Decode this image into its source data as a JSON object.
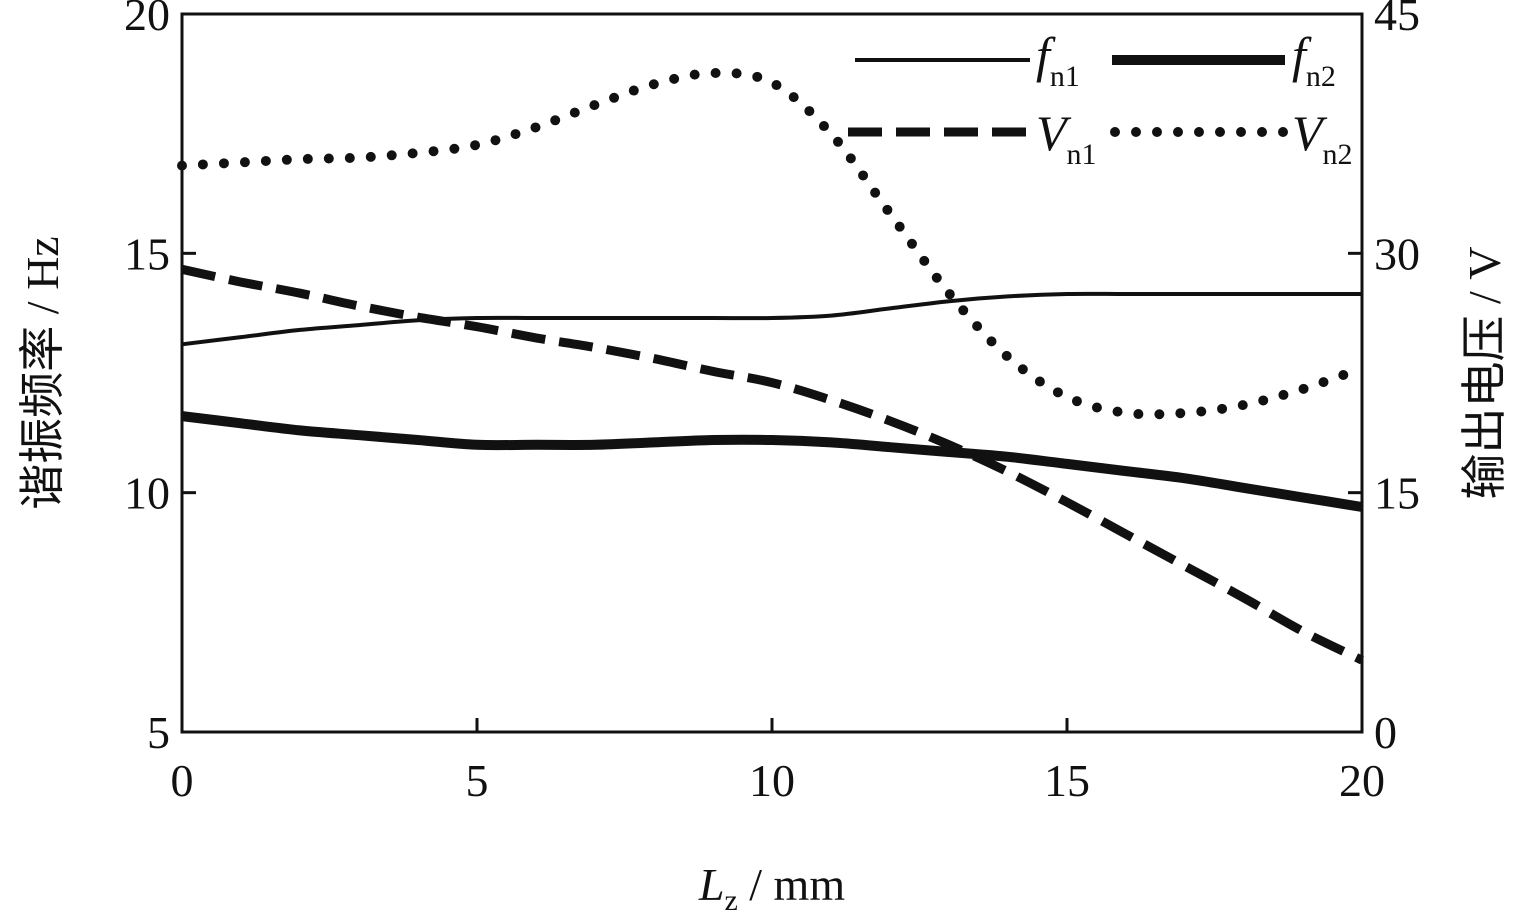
{
  "chart_data": {
    "type": "line",
    "x": [
      0,
      1,
      2,
      3,
      4,
      5,
      6,
      7,
      8,
      9,
      10,
      11,
      12,
      13,
      14,
      15,
      16,
      17,
      18,
      19,
      20
    ],
    "xlabel": {
      "symbol": "L",
      "sub": "z",
      "unit": " / mm"
    },
    "xlim": [
      0,
      20
    ],
    "xticks": [
      "0",
      "5",
      "10",
      "15",
      "20"
    ],
    "ylabel_left": "谐振频率 / Hz",
    "ylim_left": [
      5,
      20
    ],
    "yticks_left": [
      "5",
      "10",
      "15",
      "20"
    ],
    "ylabel_right": "输出电压 / V",
    "ylim_right": [
      0,
      45
    ],
    "yticks_right": [
      "0",
      "15",
      "30",
      "45"
    ],
    "grid": false,
    "legend_position": "top-right",
    "series": [
      {
        "name": "f",
        "sub": "n1",
        "axis": "left",
        "style": "solid-thin",
        "values": [
          13.1,
          13.25,
          13.4,
          13.5,
          13.6,
          13.65,
          13.65,
          13.65,
          13.65,
          13.65,
          13.65,
          13.7,
          13.85,
          14.0,
          14.1,
          14.15,
          14.15,
          14.15,
          14.15,
          14.15,
          14.15
        ]
      },
      {
        "name": "f",
        "sub": "n2",
        "axis": "left",
        "style": "solid-thick",
        "values": [
          11.6,
          11.45,
          11.3,
          11.2,
          11.1,
          11.0,
          11.0,
          11.0,
          11.05,
          11.1,
          11.1,
          11.05,
          10.95,
          10.85,
          10.75,
          10.6,
          10.45,
          10.3,
          10.1,
          9.9,
          9.7
        ]
      },
      {
        "name": "V",
        "sub": "n1",
        "axis": "right",
        "style": "dashed",
        "values": [
          29.0,
          28.2,
          27.5,
          26.7,
          26.0,
          25.4,
          24.7,
          24.1,
          23.4,
          22.6,
          21.9,
          20.8,
          19.5,
          18.0,
          16.3,
          14.4,
          12.4,
          10.4,
          8.4,
          6.3,
          4.5
        ]
      },
      {
        "name": "V",
        "sub": "n2",
        "axis": "right",
        "style": "dotted",
        "values": [
          35.5,
          35.7,
          35.9,
          36.0,
          36.3,
          36.8,
          37.9,
          39.3,
          40.6,
          41.3,
          40.7,
          37.5,
          32.5,
          27.5,
          23.5,
          21.0,
          20.0,
          20.0,
          20.5,
          21.5,
          22.8
        ]
      }
    ]
  }
}
